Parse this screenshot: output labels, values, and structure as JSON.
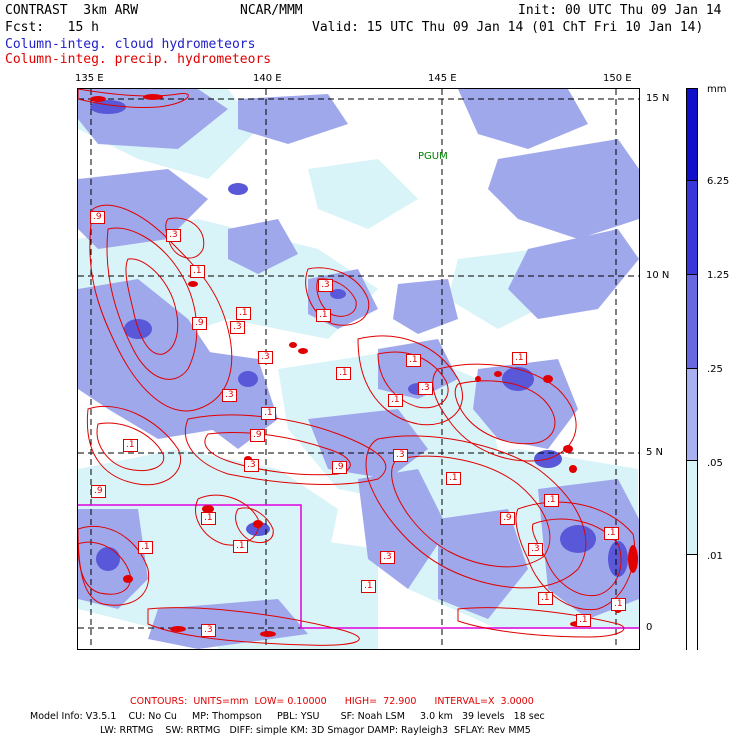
{
  "header": {
    "line1_left": "CONTRAST  3km ARW",
    "line1_mid": "NCAR/MMM",
    "line1_right": "Init: 00 UTC Thu 09 Jan 14",
    "line2_left": "Fcst:   15 h",
    "line2_right": "Valid: 15 UTC Thu 09 Jan 14 (01 ChT Fri 10 Jan 14)",
    "field1": "Column-integ. cloud hydrometeors",
    "field2": "Column-integ. precip. hydrometeors"
  },
  "map": {
    "lon_labels": [
      "135 E",
      "140 E",
      "145 E",
      "150 E"
    ],
    "lat_labels": [
      "15 N",
      "10 N",
      "5 N",
      "0"
    ],
    "station_label": "PGUM",
    "contour_labels": [
      ".9",
      ".3",
      ".1",
      ".1",
      ".3",
      ".9",
      ".3",
      ".1",
      ".9",
      ".1",
      ".3",
      ".1",
      ".9",
      ".3",
      ".1",
      ".3",
      ".1",
      ".1",
      ".3",
      ".9",
      ".3",
      ".1",
      ".1",
      ".1",
      ".9",
      ".3",
      ".1",
      ".1",
      ".1",
      ".3",
      ".1",
      ".1",
      ".3",
      ".1",
      ".1",
      ".1"
    ],
    "colors": {
      "cloud_light": "#d8f4f8",
      "cloud_mid": "#a0a8ec",
      "cloud_dark": "#5858d8",
      "contour": "#e00000",
      "box": "#e000e0",
      "station": "#008000"
    }
  },
  "colorbar": {
    "unit": "mm",
    "labels": [
      "6.25",
      "1.25",
      ".25",
      ".05",
      ".01"
    ],
    "colors": [
      "#1010c8",
      "#3838d8",
      "#6868e0",
      "#a8b0f0",
      "#d8f4f8",
      "#ffffff"
    ]
  },
  "footer": {
    "contours": "CONTOURS:  UNITS=mm  LOW= 0.10000      HIGH=  72.900      INTERVAL=X  3.0000",
    "model1": "Model Info: V3.5.1    CU: No Cu     MP: Thompson     PBL: YSU       SF: Noah LSM     3.0 km   39 levels   18 sec",
    "model2": "LW: RRTMG    SW: RRTMG   DIFF: simple KM: 3D Smagor DAMP: Rayleigh3  SFLAY: Rev MM5"
  }
}
